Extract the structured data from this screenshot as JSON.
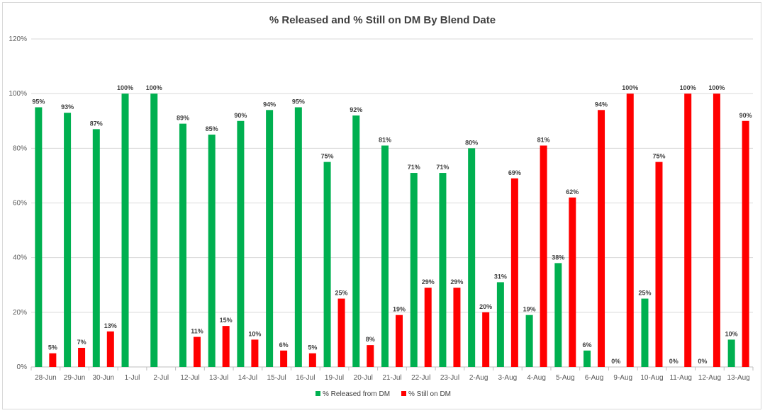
{
  "chart_data": {
    "type": "bar",
    "title": "% Released and % Still on DM By Blend Date",
    "categories": [
      "28-Jun",
      "29-Jun",
      "30-Jun",
      "1-Jul",
      "2-Jul",
      "12-Jul",
      "13-Jul",
      "14-Jul",
      "15-Jul",
      "16-Jul",
      "19-Jul",
      "20-Jul",
      "21-Jul",
      "22-Jul",
      "23-Jul",
      "2-Aug",
      "3-Aug",
      "4-Aug",
      "5-Aug",
      "6-Aug",
      "9-Aug",
      "10-Aug",
      "11-Aug",
      "12-Aug",
      "13-Aug"
    ],
    "series": [
      {
        "name": "% Released from DM",
        "color": "#00b050",
        "values": [
          95,
          93,
          87,
          100,
          100,
          89,
          85,
          90,
          94,
          95,
          75,
          92,
          81,
          71,
          71,
          80,
          31,
          19,
          38,
          6,
          0,
          25,
          0,
          0,
          10
        ],
        "labels": [
          "95%",
          "93%",
          "87%",
          "100%",
          "100%",
          "89%",
          "85%",
          "90%",
          "94%",
          "95%",
          "75%",
          "92%",
          "81%",
          "71%",
          "71%",
          "80%",
          "31%",
          "19%",
          "38%",
          "6%",
          "0%",
          "25%",
          "0%",
          "0%",
          "10%"
        ]
      },
      {
        "name": "% Still on DM",
        "color": "#ff0000",
        "values": [
          5,
          7,
          13,
          0,
          0,
          11,
          15,
          10,
          6,
          5,
          25,
          8,
          19,
          29,
          29,
          20,
          69,
          81,
          62,
          94,
          100,
          75,
          100,
          100,
          90
        ],
        "labels": [
          "5%",
          "7%",
          "13%",
          "",
          "",
          "11%",
          "15%",
          "10%",
          "6%",
          "5%",
          "25%",
          "8%",
          "19%",
          "29%",
          "29%",
          "20%",
          "69%",
          "81%",
          "62%",
          "94%",
          "100%",
          "75%",
          "100%",
          "100%",
          "90%"
        ]
      }
    ],
    "y_ticks": [
      "0%",
      "20%",
      "40%",
      "60%",
      "80%",
      "100%",
      "120%"
    ],
    "ylim": [
      0,
      120
    ],
    "grid": true,
    "legend_position": "bottom"
  }
}
